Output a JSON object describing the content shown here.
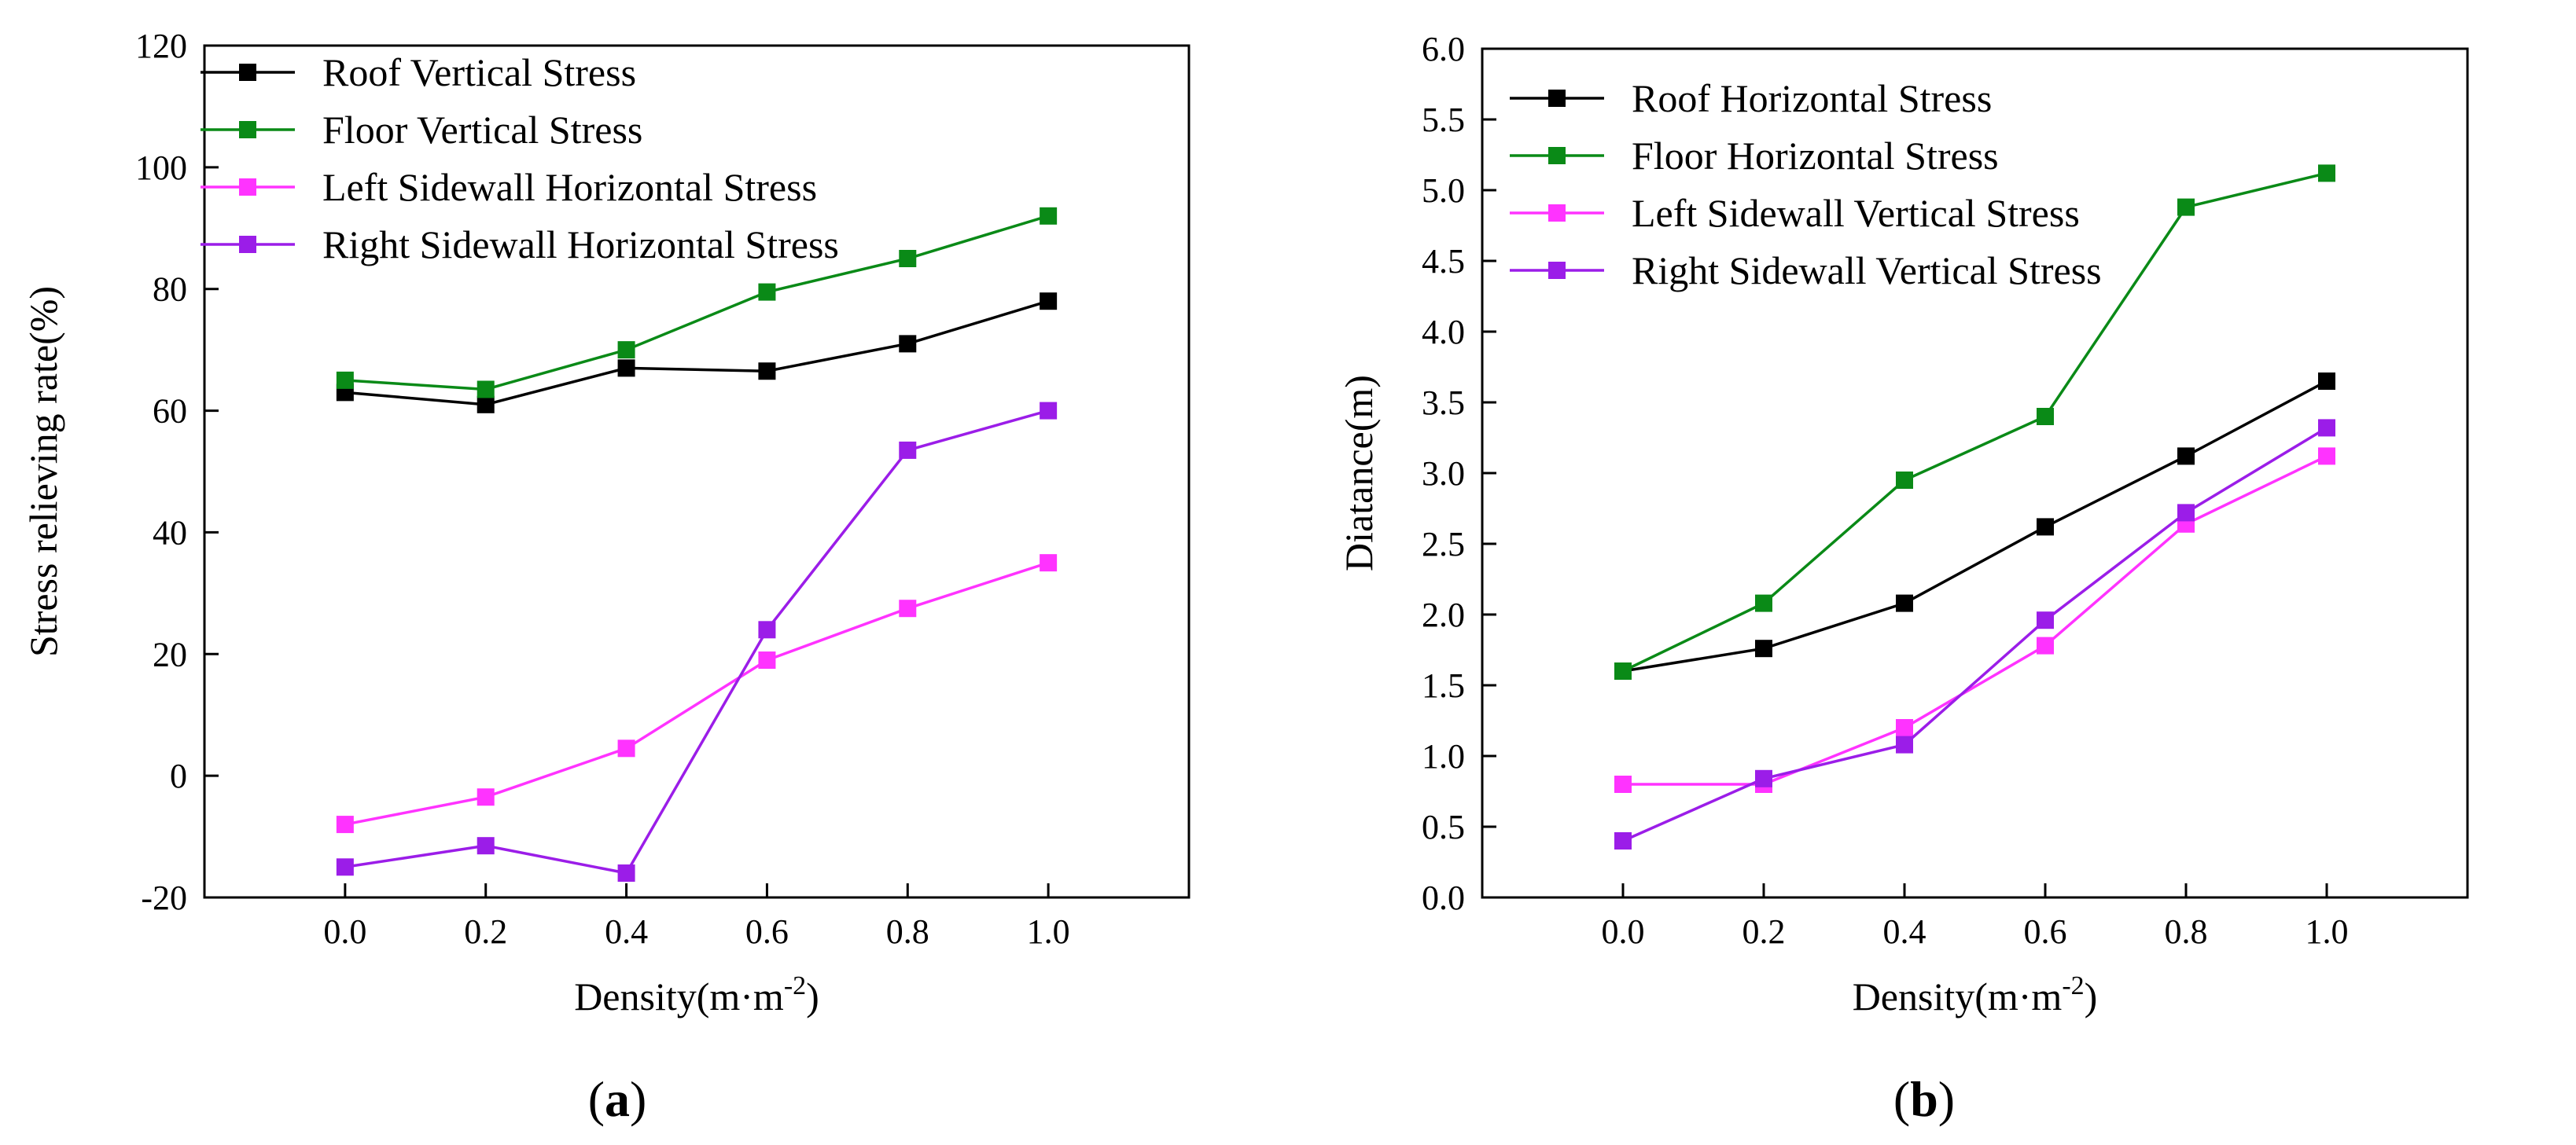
{
  "chart_data": [
    {
      "type": "line",
      "panel_label": "a",
      "xlabel": "Density(m·m",
      "xlabel_sup": "-2",
      "xlabel_close": ")",
      "ylabel": "Stress relieving rate(%)",
      "x": [
        0.0,
        0.2,
        0.4,
        0.6,
        0.8,
        1.0
      ],
      "xlim": [
        -0.2,
        1.2
      ],
      "ylim": [
        -20,
        120
      ],
      "xticks": [
        "0.0",
        "0.2",
        "0.4",
        "0.6",
        "0.8",
        "1.0"
      ],
      "yticks": [
        "-20",
        "0",
        "20",
        "40",
        "60",
        "80",
        "100",
        "120"
      ],
      "legend_position": "top-left",
      "grid": false,
      "series": [
        {
          "name": "Roof Vertical Stress",
          "color": "#000000",
          "values": [
            63,
            61,
            67,
            66.5,
            71,
            78
          ]
        },
        {
          "name": "Floor Vertical Stress",
          "color": "#0a8a17",
          "values": [
            65,
            63.5,
            70,
            79.5,
            85,
            92
          ]
        },
        {
          "name": "Left Sidewall Horizontal Stress",
          "color": "#ff33ff",
          "values": [
            -8,
            -3.5,
            4.5,
            19,
            27.5,
            35
          ]
        },
        {
          "name": "Right Sidewall Horizontal Stress",
          "color": "#9b1de8",
          "values": [
            -15,
            -11.5,
            -16,
            24,
            53.5,
            60
          ]
        }
      ]
    },
    {
      "type": "line",
      "panel_label": "b",
      "xlabel": "Density(m·m",
      "xlabel_sup": "-2",
      "xlabel_close": ")",
      "ylabel": "Diatance(m)",
      "x": [
        0.0,
        0.2,
        0.4,
        0.6,
        0.8,
        1.0
      ],
      "xlim": [
        -0.2,
        1.2
      ],
      "ylim": [
        0.0,
        6.0
      ],
      "xticks": [
        "0.0",
        "0.2",
        "0.4",
        "0.6",
        "0.8",
        "1.0"
      ],
      "yticks": [
        "0.0",
        "0.5",
        "1.0",
        "1.5",
        "2.0",
        "2.5",
        "3.0",
        "3.5",
        "4.0",
        "4.5",
        "5.0",
        "5.5",
        "6.0"
      ],
      "legend_position": "top-left",
      "grid": false,
      "series": [
        {
          "name": "Roof Horizontal Stress",
          "color": "#000000",
          "values": [
            1.6,
            1.76,
            2.08,
            2.62,
            3.12,
            3.65
          ]
        },
        {
          "name": "Floor Horizontal Stress",
          "color": "#0a8a17",
          "values": [
            1.6,
            2.08,
            2.95,
            3.4,
            4.88,
            5.12
          ]
        },
        {
          "name": "Left Sidewall Vertical Stress",
          "color": "#ff33ff",
          "values": [
            0.8,
            0.8,
            1.2,
            1.78,
            2.64,
            3.12
          ]
        },
        {
          "name": "Right Sidewall Vertical Stress",
          "color": "#9b1de8",
          "values": [
            0.4,
            0.84,
            1.08,
            1.96,
            2.72,
            3.32
          ]
        }
      ]
    }
  ]
}
